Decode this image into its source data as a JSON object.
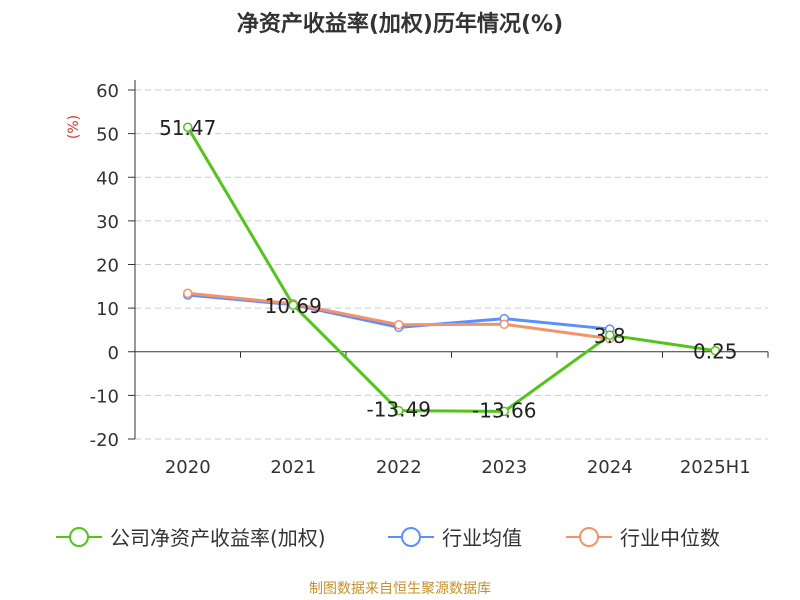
{
  "title": "净资产收益率(加权)历年情况(%)",
  "source": "制图数据来自恒生聚源数据库",
  "chart_data": {
    "type": "line",
    "title": "净资产收益率(加权)历年情况(%)",
    "ylabel": "(%)",
    "categories": [
      "2020",
      "2021",
      "2022",
      "2023",
      "2024",
      "2025H1"
    ],
    "ylim": [
      -20,
      60
    ],
    "yticks": [
      60,
      50,
      40,
      30,
      20,
      10,
      0,
      -10,
      -20
    ],
    "grid": true,
    "legend_position": "bottom",
    "series": [
      {
        "name": "公司净资产收益率(加权)",
        "color": "#52c41a",
        "values": [
          51.47,
          10.69,
          -13.49,
          -13.66,
          3.8,
          0.25
        ],
        "labels": [
          "51.47",
          "10.69",
          "-13.49",
          "-13.66",
          "3.8",
          "0.25"
        ]
      },
      {
        "name": "行业均值",
        "color": "#5b8ff9",
        "values": [
          13.0,
          10.8,
          5.6,
          7.6,
          5.2,
          null
        ]
      },
      {
        "name": "行业中位数",
        "color": "#f4936b",
        "values": [
          13.4,
          11.0,
          6.2,
          6.3,
          3.0,
          null
        ]
      }
    ]
  }
}
